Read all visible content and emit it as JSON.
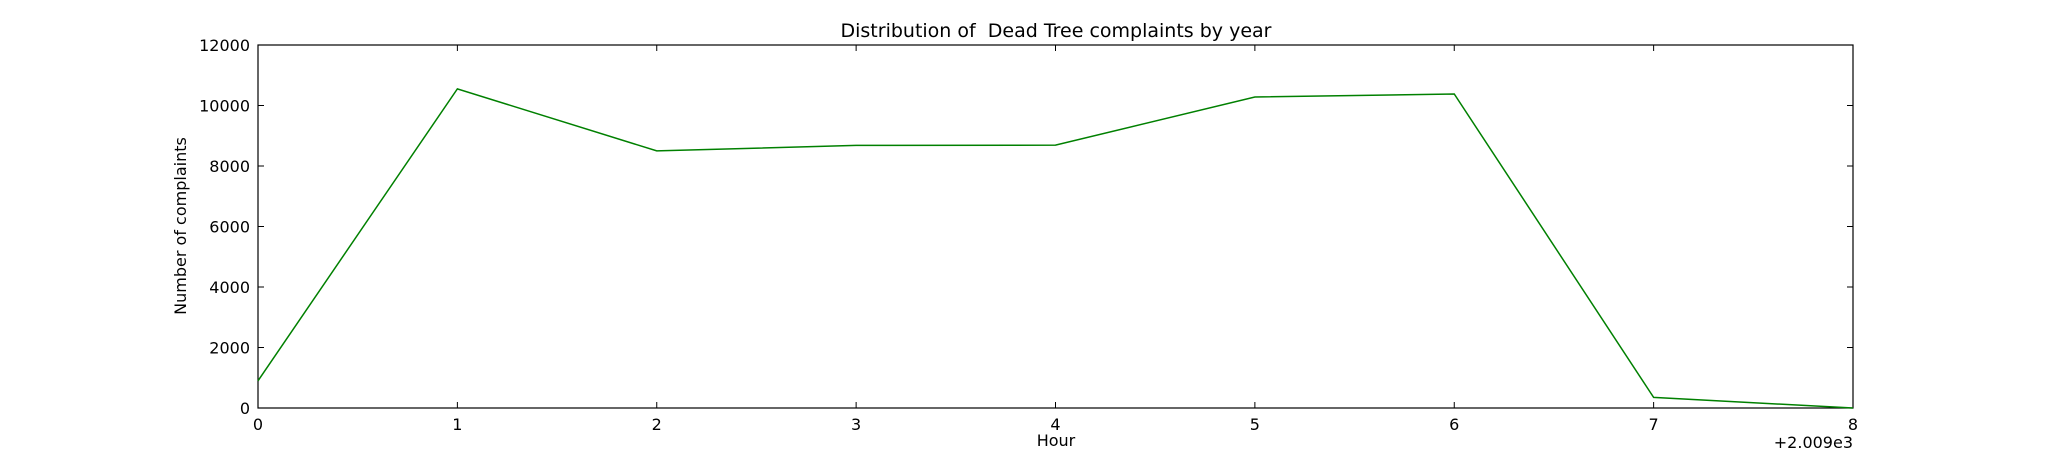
{
  "chart_data": {
    "type": "line",
    "title": "Distribution of  Dead Tree complaints by year",
    "xlabel": "Hour",
    "ylabel": "Number of complaints",
    "x_offset_text": "+2.009e3",
    "x_ticks": [
      "0",
      "1",
      "2",
      "3",
      "4",
      "5",
      "6",
      "7",
      "8"
    ],
    "y_ticks": [
      "0",
      "2000",
      "4000",
      "6000",
      "8000",
      "10000",
      "12000"
    ],
    "xlim": [
      0,
      8
    ],
    "ylim": [
      0,
      12000
    ],
    "grid": false,
    "series": [
      {
        "color": "#008000",
        "x": [
          0,
          1,
          2,
          3,
          4,
          5,
          6,
          7,
          8
        ],
        "y": [
          900,
          10550,
          8500,
          8680,
          8690,
          10280,
          10380,
          350,
          0
        ]
      }
    ]
  }
}
